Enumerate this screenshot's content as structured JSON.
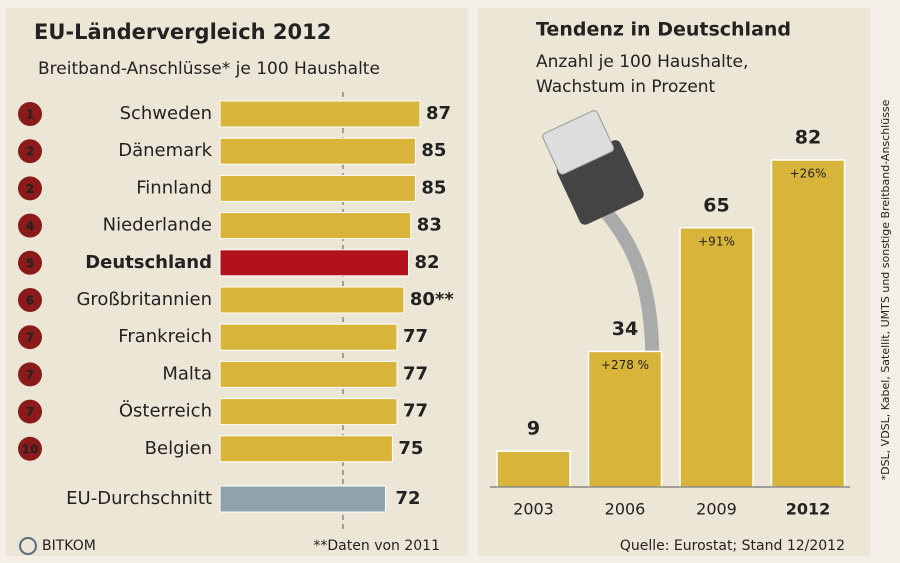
{
  "chart_data": [
    {
      "type": "hbar",
      "title": "EU-Ländervergleich 2012",
      "subtitle": "Breitband-Anschlüsse* je 100 Haushalte",
      "ranks": [
        "1",
        "2",
        "2",
        "4",
        "5",
        "6",
        "7",
        "7",
        "7",
        "10"
      ],
      "categories": [
        "Schweden",
        "Dänemark",
        "Finnland",
        "Niederlande",
        "Deutschland",
        "Großbritannien",
        "Frankreich",
        "Malta",
        "Österreich",
        "Belgien"
      ],
      "values": [
        87,
        85,
        85,
        83,
        82,
        80,
        77,
        77,
        77,
        75
      ],
      "value_labels": [
        "87",
        "85",
        "85",
        "83",
        "82",
        "80**",
        "77",
        "77",
        "77",
        "75"
      ],
      "colors": [
        "#d8b43a",
        "#d8b43a",
        "#d8b43a",
        "#d8b43a",
        "#b3121d",
        "#d8b43a",
        "#d8b43a",
        "#d8b43a",
        "#d8b43a",
        "#d8b43a"
      ],
      "average": {
        "label": "EU-Durchschnitt",
        "value": 72,
        "color": "#8fa3ad"
      },
      "footnote": "**Daten von 2011",
      "logo": "BITKOM"
    },
    {
      "type": "bar",
      "title": "Tendenz in Deutschland",
      "subtitle": [
        "Anzahl je 100 Haushalte,",
        "Wachstum in Prozent"
      ],
      "categories": [
        "2003",
        "2006",
        "2009",
        "2012"
      ],
      "values": [
        9,
        34,
        65,
        82
      ],
      "annotations": [
        null,
        "+278 %",
        "+91%",
        "+26%"
      ],
      "color": "#d8b43a",
      "source": "Quelle: Eurostat; Stand 12/2012",
      "side_note": "*DSL, VDSL, Kabel, Satellit, UMTS und sonstige Breitband-Anschlüsse"
    }
  ]
}
